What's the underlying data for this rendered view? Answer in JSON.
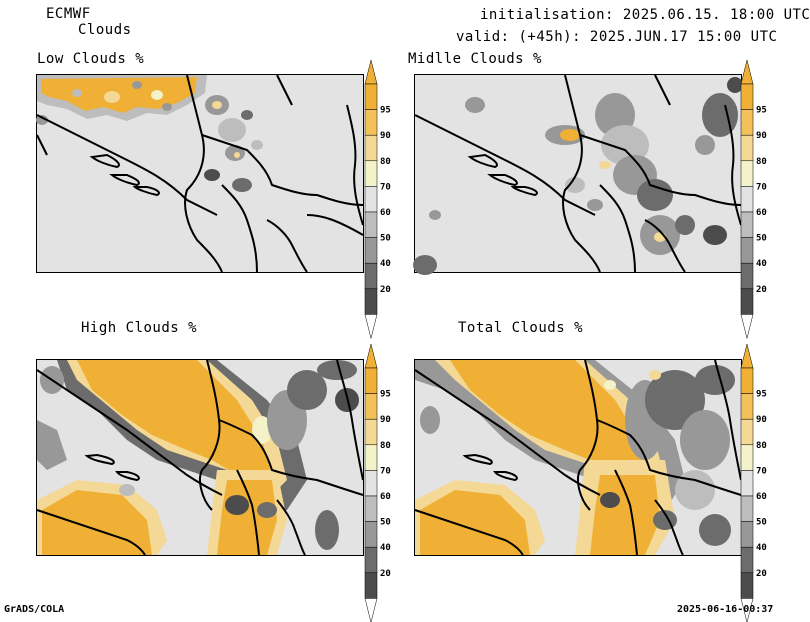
{
  "header": {
    "model": "ECMWF",
    "product": "Clouds",
    "init": "initialisation: 2025.06.15. 18:00 UTC",
    "valid": "valid: (+45h): 2025.JUN.17 15:00 UTC"
  },
  "panels": [
    {
      "id": "low",
      "title": "Low Clouds %"
    },
    {
      "id": "middle",
      "title": "Midlle Clouds %"
    },
    {
      "id": "high",
      "title": "High Clouds %"
    },
    {
      "id": "total",
      "title": "Total Clouds %"
    }
  ],
  "colorbar": {
    "levels": [
      "95",
      "90",
      "80",
      "70",
      "60",
      "50",
      "40",
      "20"
    ],
    "colors": [
      "#f0b035",
      "#f2c259",
      "#f4d895",
      "#f3f2c8",
      "#e3e3e3",
      "#bdbdbd",
      "#989898",
      "#6c6c6c",
      "#4c4c4c"
    ],
    "arrow_top": "#f0b035",
    "arrow_bottom": "#ffffff"
  },
  "footer": {
    "left": "GrADS/COLA",
    "right": "2025-06-16-00:37"
  }
}
